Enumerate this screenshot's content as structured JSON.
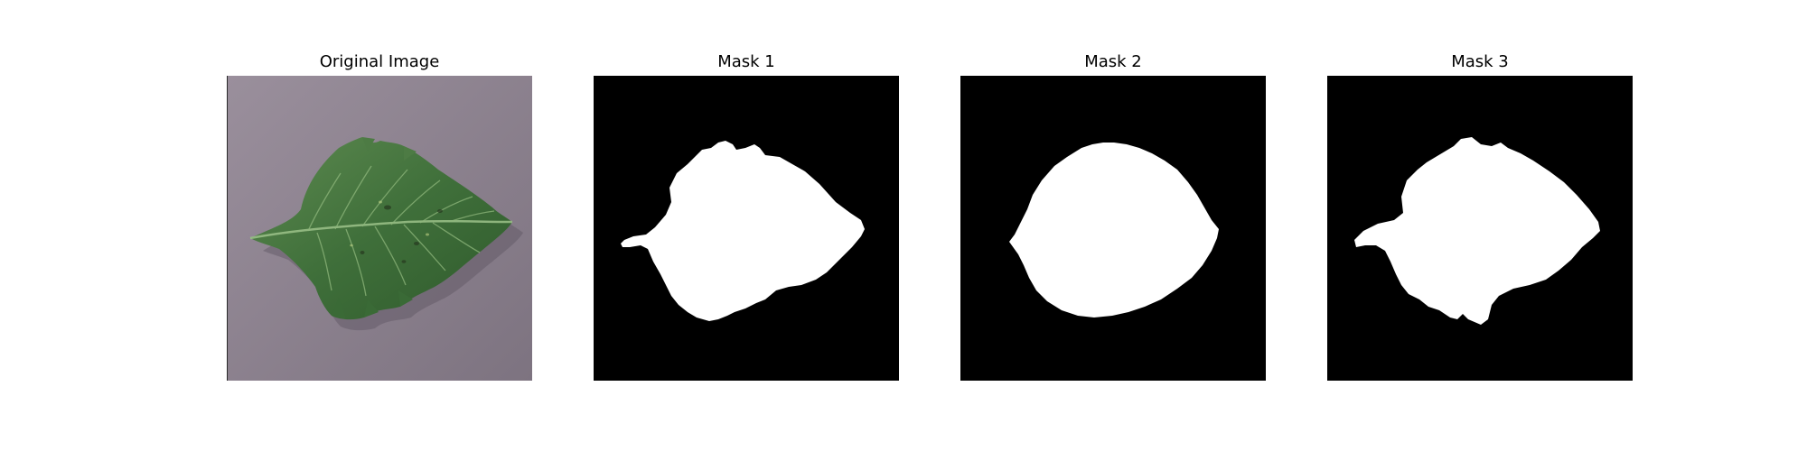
{
  "figure": {
    "panels": [
      {
        "title": "Original Image",
        "kind": "photo",
        "content": "leaf-photo"
      },
      {
        "title": "Mask 1",
        "kind": "mask",
        "content": "binary-mask"
      },
      {
        "title": "Mask 2",
        "kind": "mask",
        "content": "binary-mask"
      },
      {
        "title": "Mask 3",
        "kind": "mask",
        "content": "binary-mask"
      }
    ]
  },
  "colors": {
    "page_background": "#ffffff",
    "photo_background": "#8a7f8c",
    "leaf_dark": "#2f5a2c",
    "leaf_mid": "#4f7d45",
    "leaf_light": "#6f9a5c",
    "mask_background": "#000000",
    "mask_foreground": "#ffffff"
  }
}
